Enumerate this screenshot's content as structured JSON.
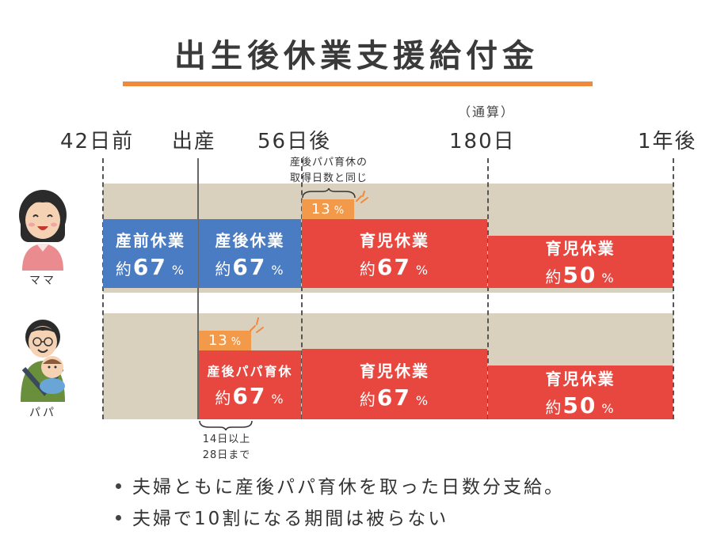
{
  "title": "出生後休業支援給付金",
  "timeline": {
    "note": "（通算）",
    "labels": [
      "42日前",
      "出産",
      "56日後",
      "180日",
      "1年後"
    ]
  },
  "rows": {
    "mama": {
      "person": "ママ",
      "blocks": [
        {
          "name": "産前休業",
          "prefix": "約",
          "value": "67",
          "unit": "%"
        },
        {
          "name": "産後休業",
          "prefix": "約",
          "value": "67",
          "unit": "%"
        },
        {
          "name": "育児休業",
          "prefix": "約",
          "value": "67",
          "unit": "%"
        },
        {
          "name": "育児休業",
          "prefix": "約",
          "value": "50",
          "unit": "%"
        }
      ],
      "bonus": {
        "value": "13",
        "unit": "%"
      },
      "annotation": [
        "産後パパ育休の",
        "取得日数と同じ"
      ]
    },
    "papa": {
      "person": "パパ",
      "blocks": [
        {
          "name": "産後パパ育休",
          "prefix": "約",
          "value": "67",
          "unit": "%"
        },
        {
          "name": "育児休業",
          "prefix": "約",
          "value": "67",
          "unit": "%"
        },
        {
          "name": "育児休業",
          "prefix": "約",
          "value": "50",
          "unit": "%"
        }
      ],
      "bonus": {
        "value": "13",
        "unit": "%"
      },
      "annotation": [
        "14日以上",
        "28日まで"
      ]
    }
  },
  "bullets": [
    "夫婦ともに産後パパ育休を取った日数分支給。",
    "夫婦で10割になる期間は被らない"
  ],
  "colors": {
    "accent": "#ef8a3c",
    "blue": "#4a7cc4",
    "red": "#e8473f",
    "orange": "#f29a4a",
    "band": "#d9d1bd"
  }
}
